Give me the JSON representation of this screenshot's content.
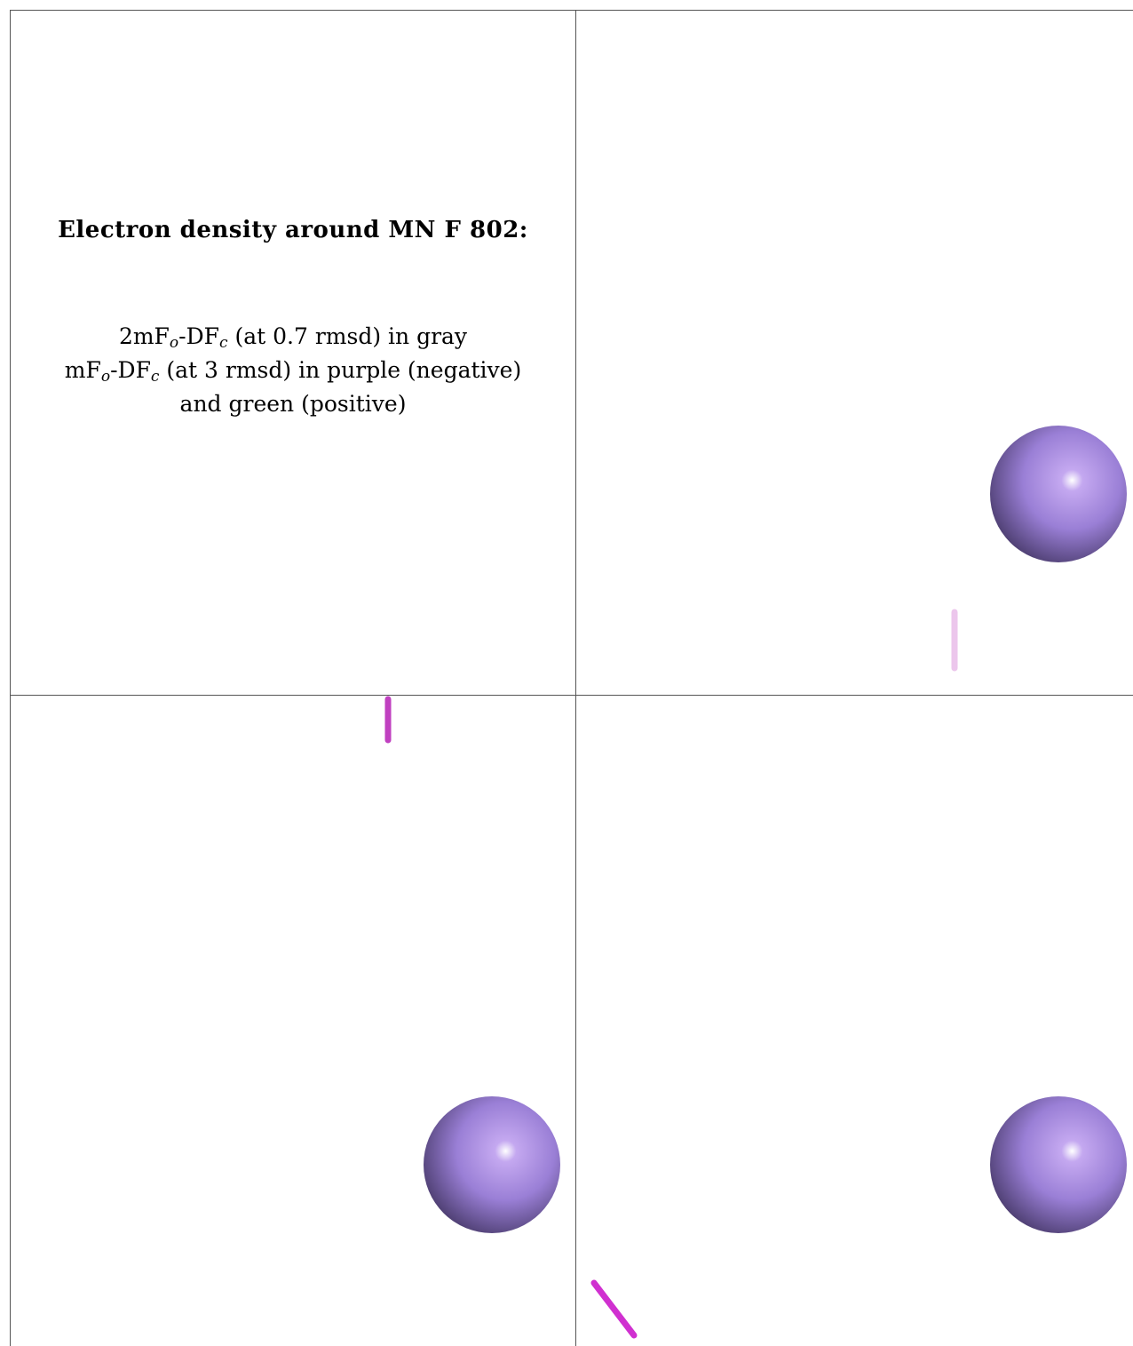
{
  "caption": {
    "title": "Electron density around MN F 802:",
    "line1": {
      "a": "2mF",
      "sub1": "o",
      "b": "-DF",
      "sub2": "c",
      "c": " (at 0.7 rmsd) in gray"
    },
    "line2": {
      "a": "mF",
      "sub1": "o",
      "b": "-DF",
      "sub2": "c",
      "c": " (at 3 rmsd) in purple (negative)"
    },
    "line3": "and green (positive)"
  },
  "colors": {
    "atom_sphere": "#9a7fd6",
    "atom_highlight": "#ffffff",
    "atom_shadow": "#4e3f72",
    "density_negative": "#d030d0",
    "density_negative_faint": "#ecc6ec",
    "border": "#555555"
  },
  "panels": [
    {
      "name": "caption-panel"
    },
    {
      "name": "view-panel-1",
      "atom": "MN",
      "contour": "negative-density-faint"
    },
    {
      "name": "view-panel-2",
      "atom": "MN",
      "contour": "negative-density"
    },
    {
      "name": "view-panel-3",
      "atom": "MN",
      "contour": "negative-density"
    }
  ]
}
